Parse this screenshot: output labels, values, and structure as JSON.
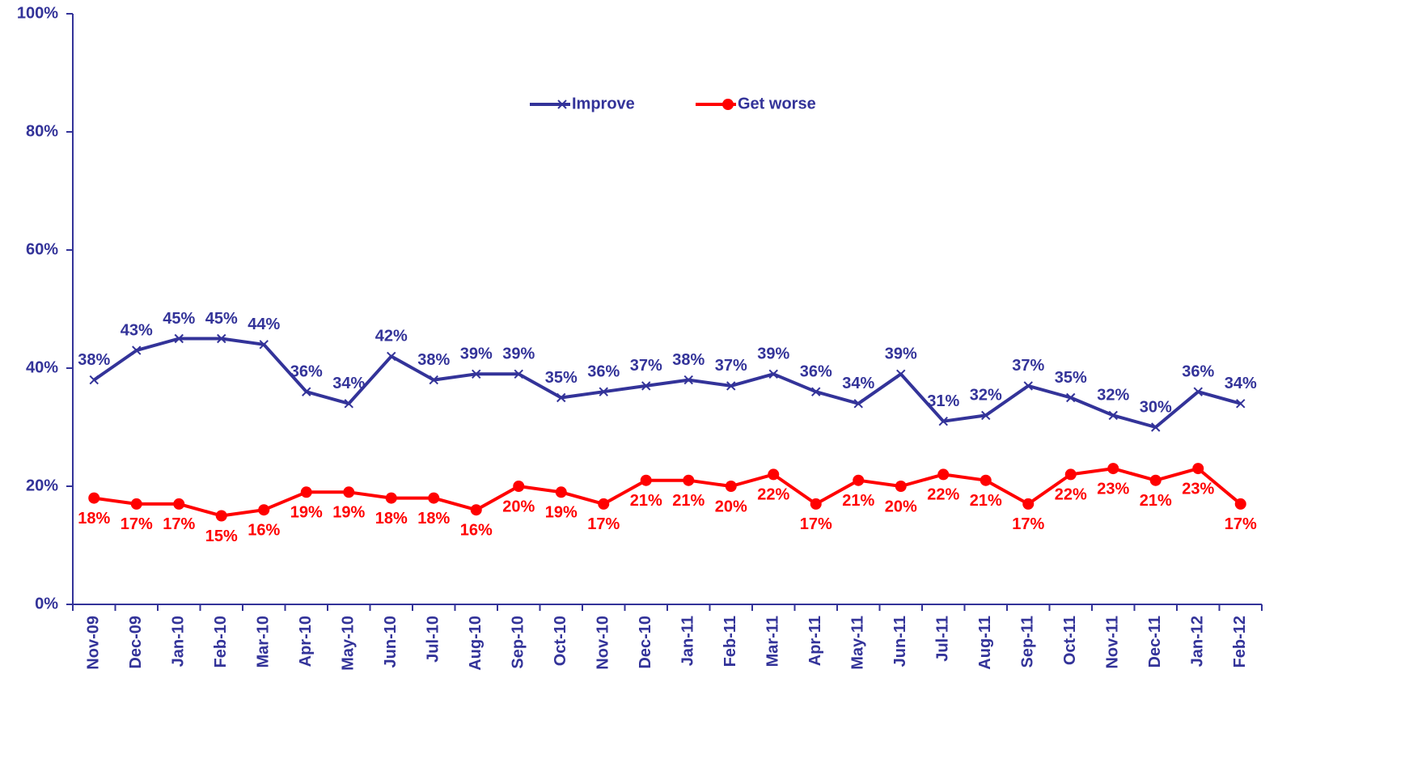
{
  "chart_data": {
    "type": "line",
    "categories": [
      "Nov-09",
      "Dec-09",
      "Jan-10",
      "Feb-10",
      "Mar-10",
      "Apr-10",
      "May-10",
      "Jun-10",
      "Jul-10",
      "Aug-10",
      "Sep-10",
      "Oct-10",
      "Nov-10",
      "Dec-10",
      "Jan-11",
      "Feb-11",
      "Mar-11",
      "Apr-11",
      "May-11",
      "Jun-11",
      "Jul-11",
      "Aug-11",
      "Sep-11",
      "Oct-11",
      "Nov-11",
      "Dec-11",
      "Jan-12",
      "Feb-12"
    ],
    "series": [
      {
        "name": "Improve",
        "color": "#333399",
        "marker": "x",
        "values": [
          38,
          43,
          45,
          45,
          44,
          36,
          34,
          42,
          38,
          39,
          39,
          35,
          36,
          37,
          38,
          37,
          39,
          36,
          34,
          39,
          31,
          32,
          37,
          35,
          32,
          30,
          36,
          34
        ],
        "value_labels": [
          "38%",
          "43%",
          "45%",
          "45%",
          "44%",
          "36%",
          "34%",
          "42%",
          "38%",
          "39%",
          "39%",
          "35%",
          "36%",
          "37%",
          "38%",
          "37%",
          "39%",
          "36%",
          "34%",
          "39%",
          "31%",
          "32%",
          "37%",
          "35%",
          "32%",
          "30%",
          "36%",
          "34%"
        ]
      },
      {
        "name": "Get worse",
        "color": "#ff0000",
        "marker": "circle",
        "values": [
          18,
          17,
          17,
          15,
          16,
          19,
          19,
          18,
          18,
          16,
          20,
          19,
          17,
          21,
          21,
          20,
          22,
          17,
          21,
          20,
          22,
          21,
          17,
          22,
          23,
          21,
          23,
          17
        ],
        "value_labels": [
          "18%",
          "17%",
          "17%",
          "15%",
          "16%",
          "19%",
          "19%",
          "18%",
          "18%",
          "16%",
          "20%",
          "19%",
          "17%",
          "21%",
          "21%",
          "20%",
          "22%",
          "17%",
          "21%",
          "20%",
          "22%",
          "21%",
          "17%",
          "22%",
          "23%",
          "21%",
          "23%",
          "17%"
        ]
      }
    ],
    "ylim": [
      0,
      100
    ],
    "yticks": [
      {
        "value": 0,
        "label": "0%"
      },
      {
        "value": 20,
        "label": "20%"
      },
      {
        "value": 40,
        "label": "40%"
      },
      {
        "value": 60,
        "label": "60%"
      },
      {
        "value": 80,
        "label": "80%"
      },
      {
        "value": 100,
        "label": "100%"
      }
    ],
    "grid": false,
    "legend": "top"
  }
}
